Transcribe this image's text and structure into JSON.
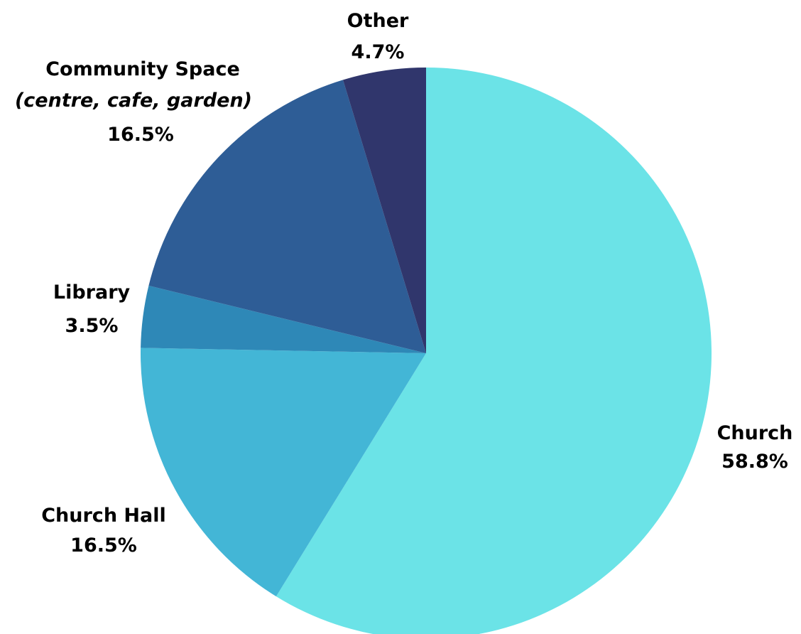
{
  "chart_data": {
    "type": "pie",
    "title": "",
    "slices": [
      {
        "name": "Church",
        "value": 58.8,
        "value_label": "58.8%",
        "color": "#6be3e7"
      },
      {
        "name": "Church Hall",
        "value": 16.5,
        "value_label": "16.5%",
        "color": "#43b6d6"
      },
      {
        "name": "Library",
        "value": 3.5,
        "value_label": "3.5%",
        "color": "#2e88b7"
      },
      {
        "name": "Community Space",
        "subname": "(centre, cafe, garden)",
        "value": 16.5,
        "value_label": "16.5%",
        "color": "#2e5d96"
      },
      {
        "name": "Other",
        "value": 4.7,
        "value_label": "4.7%",
        "color": "#30366c"
      }
    ],
    "start_angle": "12 o'clock",
    "direction": "clockwise",
    "legend": "none"
  }
}
